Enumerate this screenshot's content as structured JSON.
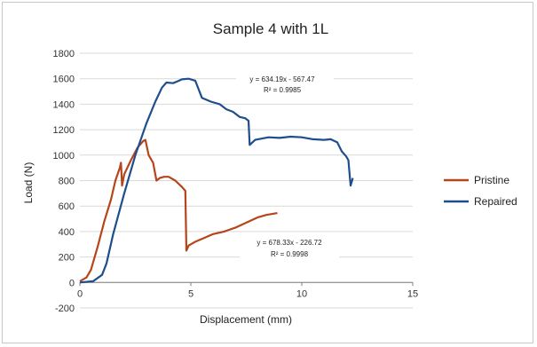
{
  "chart_data": {
    "type": "line",
    "title": "Sample 4 with 1L",
    "xlabel": "Displacement (mm)",
    "ylabel": "Load (N)",
    "xlim": [
      0,
      15
    ],
    "ylim": [
      -200,
      1800
    ],
    "xticks": [
      0,
      5,
      10,
      15
    ],
    "yticks": [
      -200,
      0,
      200,
      400,
      600,
      800,
      1000,
      1200,
      1400,
      1600,
      1800
    ],
    "grid": "horizontal",
    "legend_position": "right",
    "series": [
      {
        "name": "Pristine",
        "color": "#b5451b",
        "points": [
          [
            0,
            10
          ],
          [
            0.3,
            40
          ],
          [
            0.5,
            100
          ],
          [
            0.8,
            280
          ],
          [
            1.1,
            480
          ],
          [
            1.4,
            650
          ],
          [
            1.6,
            800
          ],
          [
            1.8,
            900
          ],
          [
            1.85,
            940
          ],
          [
            1.9,
            760
          ],
          [
            2.0,
            850
          ],
          [
            2.3,
            960
          ],
          [
            2.6,
            1060
          ],
          [
            2.85,
            1110
          ],
          [
            2.95,
            1120
          ],
          [
            3.1,
            1000
          ],
          [
            3.3,
            940
          ],
          [
            3.45,
            800
          ],
          [
            3.6,
            820
          ],
          [
            3.8,
            830
          ],
          [
            4.0,
            830
          ],
          [
            4.3,
            800
          ],
          [
            4.6,
            750
          ],
          [
            4.75,
            720
          ],
          [
            4.8,
            250
          ],
          [
            4.9,
            290
          ],
          [
            5.2,
            320
          ],
          [
            5.6,
            350
          ],
          [
            6.0,
            380
          ],
          [
            6.5,
            400
          ],
          [
            7.0,
            430
          ],
          [
            7.5,
            470
          ],
          [
            8.0,
            510
          ],
          [
            8.4,
            530
          ],
          [
            8.9,
            545
          ]
        ]
      },
      {
        "name": "Repaired",
        "color": "#1f4e8c",
        "points": [
          [
            0,
            0
          ],
          [
            0.6,
            10
          ],
          [
            1.0,
            60
          ],
          [
            1.2,
            150
          ],
          [
            1.5,
            380
          ],
          [
            2.0,
            700
          ],
          [
            2.5,
            1000
          ],
          [
            3.0,
            1250
          ],
          [
            3.4,
            1420
          ],
          [
            3.7,
            1530
          ],
          [
            3.9,
            1570
          ],
          [
            4.2,
            1565
          ],
          [
            4.4,
            1580
          ],
          [
            4.6,
            1595
          ],
          [
            4.9,
            1600
          ],
          [
            5.2,
            1585
          ],
          [
            5.5,
            1450
          ],
          [
            5.9,
            1420
          ],
          [
            6.3,
            1400
          ],
          [
            6.6,
            1360
          ],
          [
            6.9,
            1340
          ],
          [
            7.2,
            1300
          ],
          [
            7.45,
            1290
          ],
          [
            7.6,
            1270
          ],
          [
            7.65,
            1080
          ],
          [
            7.9,
            1120
          ],
          [
            8.5,
            1140
          ],
          [
            9.0,
            1135
          ],
          [
            9.5,
            1145
          ],
          [
            10.0,
            1140
          ],
          [
            10.5,
            1125
          ],
          [
            11.0,
            1120
          ],
          [
            11.3,
            1125
          ],
          [
            11.6,
            1100
          ],
          [
            11.8,
            1030
          ],
          [
            12.0,
            990
          ],
          [
            12.1,
            960
          ],
          [
            12.2,
            760
          ],
          [
            12.3,
            820
          ]
        ]
      }
    ],
    "annotations": {
      "repaired_eq": "y = 634.19x - 567.47",
      "repaired_r2": "R² = 0.9985",
      "pristine_eq": "y = 678.33x - 226.72",
      "pristine_r2": "R² = 0.9998"
    }
  }
}
